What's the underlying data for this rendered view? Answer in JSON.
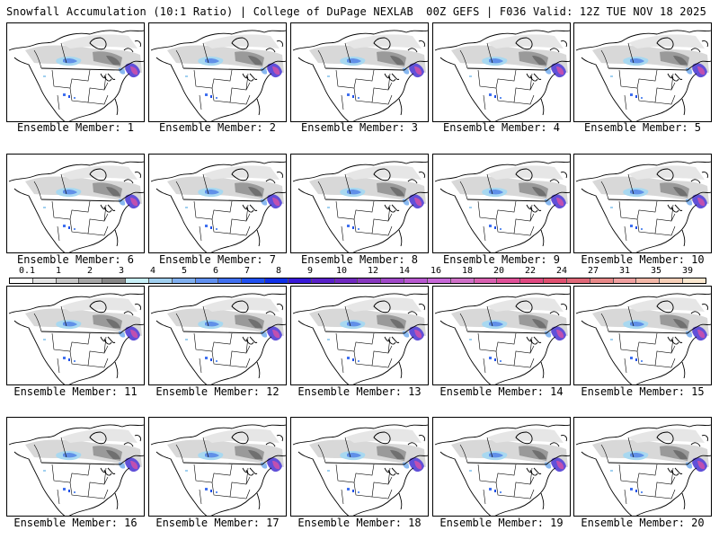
{
  "header": {
    "left_title": "Snowfall Accumulation (10:1 Ratio) | College of DuPage NEXLAB",
    "right_title": "00Z GEFS | F036 Valid: 12Z TUE NOV 18 2025"
  },
  "panels": [
    {
      "label": "Ensemble Member: 1"
    },
    {
      "label": "Ensemble Member: 2"
    },
    {
      "label": "Ensemble Member: 3"
    },
    {
      "label": "Ensemble Member: 4"
    },
    {
      "label": "Ensemble Member: 5"
    },
    {
      "label": "Ensemble Member: 6"
    },
    {
      "label": "Ensemble Member: 7"
    },
    {
      "label": "Ensemble Member: 8"
    },
    {
      "label": "Ensemble Member: 9"
    },
    {
      "label": "Ensemble Member: 10"
    },
    {
      "label": "Ensemble Member: 11"
    },
    {
      "label": "Ensemble Member: 12"
    },
    {
      "label": "Ensemble Member: 13"
    },
    {
      "label": "Ensemble Member: 14"
    },
    {
      "label": "Ensemble Member: 15"
    },
    {
      "label": "Ensemble Member: 16"
    },
    {
      "label": "Ensemble Member: 17"
    },
    {
      "label": "Ensemble Member: 18"
    },
    {
      "label": "Ensemble Member: 19"
    },
    {
      "label": "Ensemble Member: 20"
    }
  ],
  "colorbar": {
    "labels": [
      "0.1",
      "1",
      "2",
      "3",
      "4",
      "5",
      "6",
      "7",
      "8",
      "9",
      "10",
      "12",
      "14",
      "16",
      "18",
      "20",
      "22",
      "24",
      "27",
      "31",
      "35",
      "39"
    ],
    "colors": [
      "#ffffff",
      "#e4e4e4",
      "#c8c8c8",
      "#a8a8a8",
      "#888888",
      "#c8f0f8",
      "#a0d0f0",
      "#80b0f0",
      "#6090f0",
      "#4070f0",
      "#2050f0",
      "#1030e8",
      "#3818d8",
      "#5820c8",
      "#7028c0",
      "#8838c0",
      "#a048c8",
      "#b858d0",
      "#c868d8",
      "#d070c8",
      "#d860b0",
      "#e05098",
      "#e04880",
      "#e05070",
      "#e06878",
      "#e88888",
      "#f0a0a0",
      "#f4b8a8",
      "#f8d0b8",
      "#fce8d0"
    ]
  }
}
